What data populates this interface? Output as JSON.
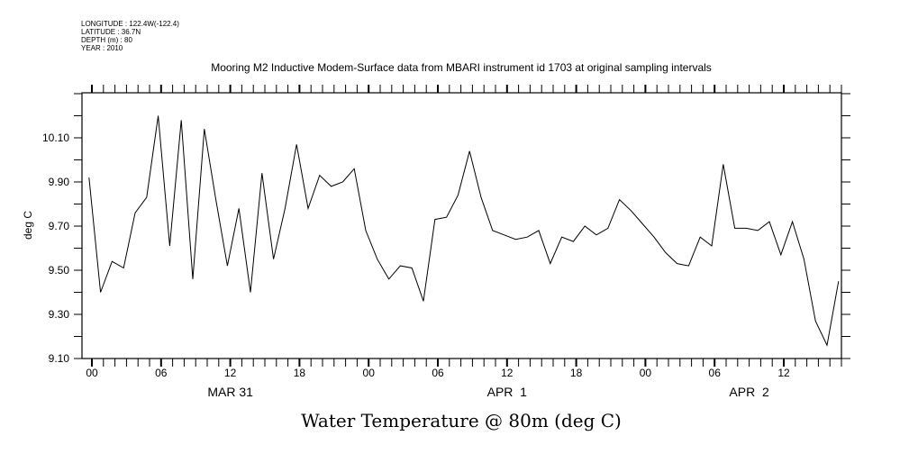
{
  "header": {
    "meta": [
      "LONGITUDE : 122.4W(-122.4)",
      "LATITUDE : 36.7N",
      "DEPTH (m) : 80",
      "YEAR : 2010"
    ]
  },
  "chart_data": {
    "type": "line",
    "title": "Mooring M2 Inductive Modem-Surface data from MBARI instrument id 1703 at original sampling intervals",
    "xlabel": "Water Temperature @ 80m (deg C)",
    "ylabel": "deg C",
    "x_units": "hours since MAR 31 00:00",
    "xlim": [
      -0.86,
      65.0
    ],
    "ylim": [
      9.1,
      10.304
    ],
    "y_ticks": [
      "9.10",
      "9.30",
      "9.50",
      "9.70",
      "9.90",
      "10.10"
    ],
    "x_ticks": [
      {
        "hour": 0,
        "label": "00"
      },
      {
        "hour": 6,
        "label": "06"
      },
      {
        "hour": 12,
        "label": "12"
      },
      {
        "hour": 18,
        "label": "18"
      },
      {
        "hour": 24,
        "label": "00"
      },
      {
        "hour": 30,
        "label": "06"
      },
      {
        "hour": 36,
        "label": "12"
      },
      {
        "hour": 42,
        "label": "18"
      },
      {
        "hour": 48,
        "label": "00"
      },
      {
        "hour": 54,
        "label": "06"
      },
      {
        "hour": 60,
        "label": "12"
      }
    ],
    "date_labels": [
      {
        "hour": 12,
        "label": "MAR 31"
      },
      {
        "hour": 36,
        "label": "APR  1"
      },
      {
        "hour": 57,
        "label": "APR  2"
      }
    ],
    "grid": false,
    "start_hour": -0.25,
    "step_hours": 1,
    "series": [
      {
        "name": "Water Temperature",
        "values": [
          9.92,
          9.4,
          9.54,
          9.51,
          9.76,
          9.83,
          10.2,
          9.61,
          10.18,
          9.46,
          10.14,
          9.82,
          9.52,
          9.78,
          9.4,
          9.94,
          9.55,
          9.78,
          10.07,
          9.78,
          9.93,
          9.88,
          9.9,
          9.96,
          9.68,
          9.55,
          9.46,
          9.52,
          9.51,
          9.36,
          9.73,
          9.74,
          9.84,
          10.04,
          9.83,
          9.68,
          9.66,
          9.64,
          9.65,
          9.68,
          9.53,
          9.65,
          9.63,
          9.7,
          9.66,
          9.69,
          9.82,
          9.77,
          9.71,
          9.65,
          9.58,
          9.53,
          9.52,
          9.65,
          9.61,
          9.98,
          9.69,
          9.69,
          9.68,
          9.72,
          9.57,
          9.72,
          9.55,
          9.27,
          9.16,
          9.45
        ]
      }
    ]
  }
}
